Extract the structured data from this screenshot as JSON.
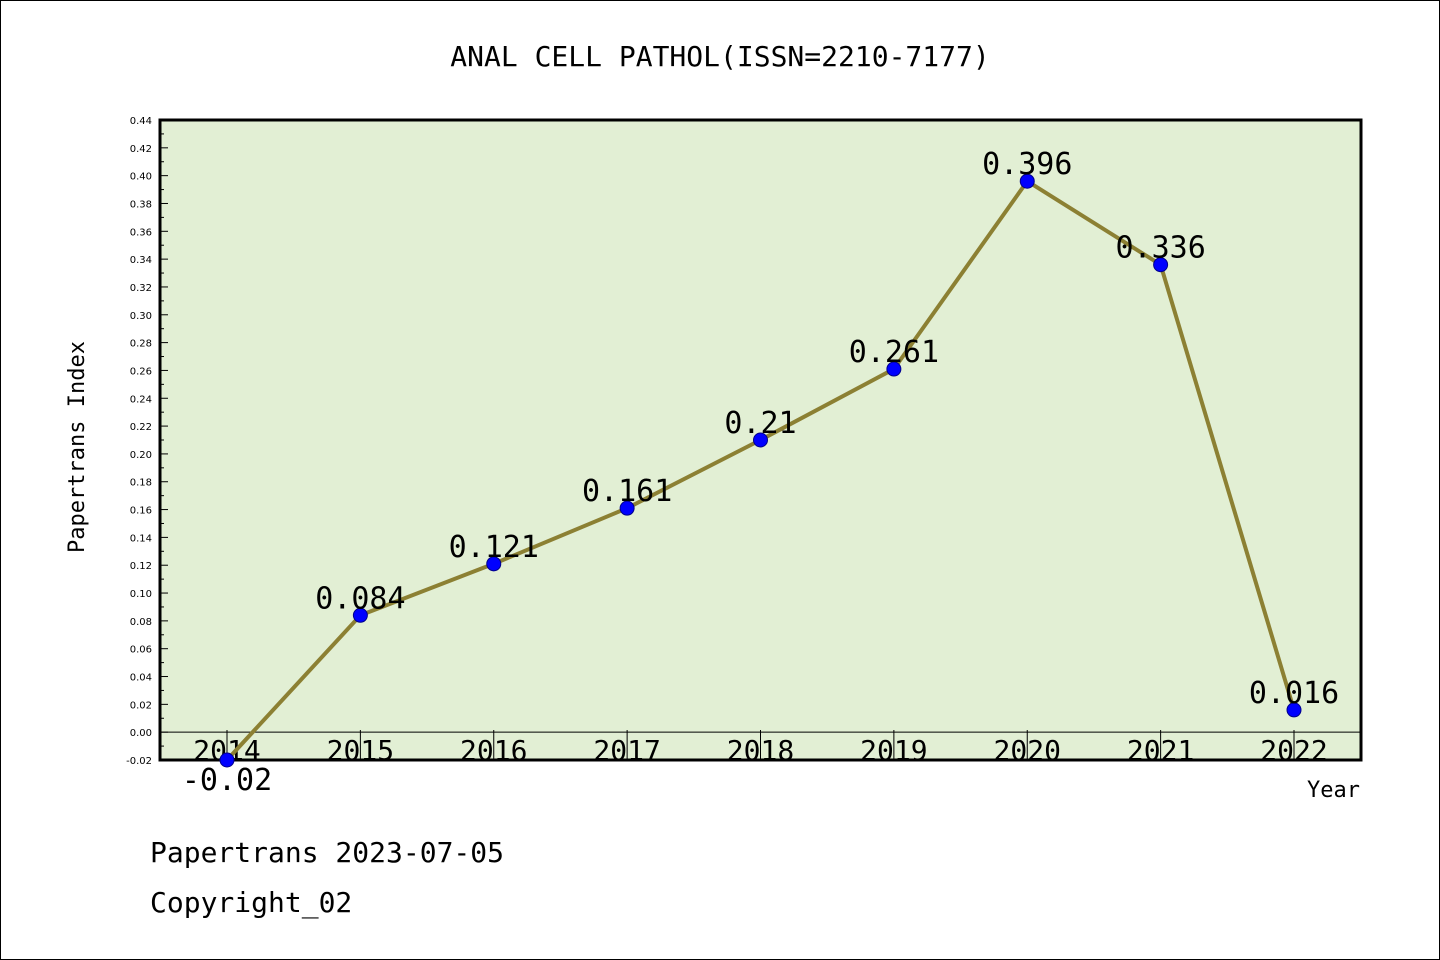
{
  "chart_data": {
    "type": "line",
    "title": "ANAL CELL PATHOL(ISSN=2210-7177)",
    "xlabel": "Year",
    "ylabel": "Papertrans Index",
    "categories": [
      "2014",
      "2015",
      "2016",
      "2017",
      "2018",
      "2019",
      "2020",
      "2021",
      "2022"
    ],
    "values": [
      -0.02,
      0.084,
      0.121,
      0.161,
      0.21,
      0.261,
      0.396,
      0.336,
      0.016
    ],
    "value_labels": [
      "-0.02",
      "0.084",
      "0.121",
      "0.161",
      "0.21",
      "0.261",
      "0.396",
      "0.336",
      "0.016"
    ],
    "ylim": [
      -0.02,
      0.44
    ],
    "yticks": [
      "-0.02",
      "0.00",
      "0.02",
      "0.04",
      "0.06",
      "0.08",
      "0.10",
      "0.12",
      "0.14",
      "0.16",
      "0.18",
      "0.20",
      "0.22",
      "0.24",
      "0.26",
      "0.28",
      "0.30",
      "0.32",
      "0.34",
      "0.36",
      "0.38",
      "0.40",
      "0.42",
      "0.44"
    ],
    "grid": false,
    "colors": {
      "plot_bg": "#e2efd4",
      "line": "#8c8033",
      "marker": "#0000ff",
      "zero_line": "#000000"
    }
  },
  "footer": {
    "date_line": "Papertrans 2023-07-05",
    "copyright": "Copyright_02"
  }
}
